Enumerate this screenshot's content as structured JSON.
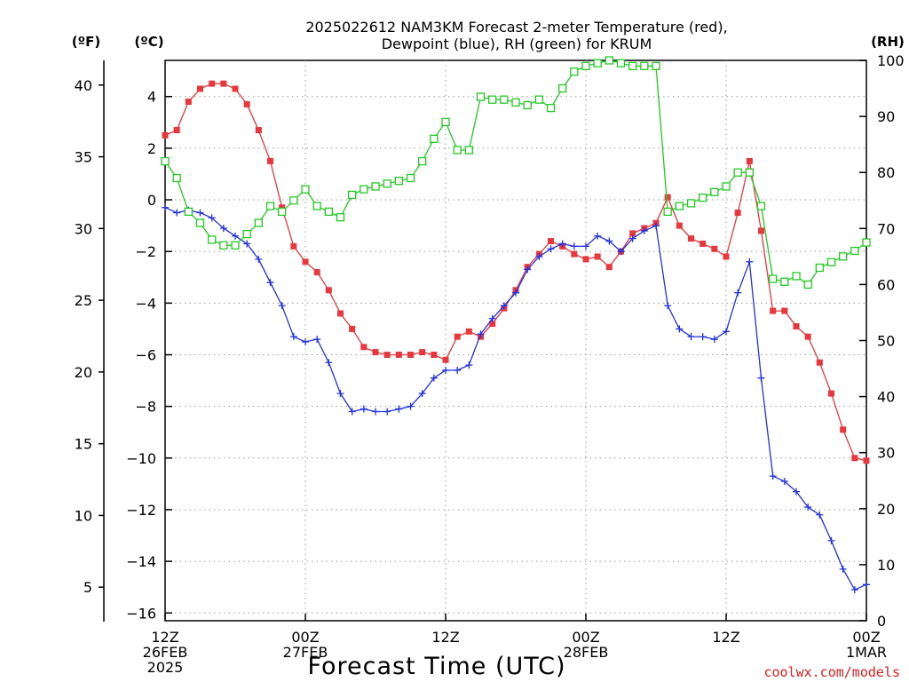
{
  "chart_data": {
    "type": "line",
    "title_line1": "2025022612 NAM3KM Forecast 2-meter Temperature (red),",
    "title_line2": "Dewpoint (blue), RH (green) for KRUM",
    "xlabel": "Forecast Time (UTC)",
    "credit": "coolwx.com/models",
    "unit_f_label": "(ºF)",
    "unit_c_label": "(ºC)",
    "unit_rh_label": "(RH)",
    "x_range_hours": [
      0,
      60
    ],
    "ylim_c": [
      -16.3,
      5.4
    ],
    "ylim_rh": [
      0,
      100
    ],
    "grid": true,
    "x_ticks": [
      {
        "hour": 0,
        "line1": "12Z",
        "line2": "26FEB",
        "line3": "2025"
      },
      {
        "hour": 12,
        "line1": "00Z",
        "line2": "27FEB",
        "line3": ""
      },
      {
        "hour": 24,
        "line1": "12Z",
        "line2": "",
        "line3": ""
      },
      {
        "hour": 36,
        "line1": "00Z",
        "line2": "28FEB",
        "line3": ""
      },
      {
        "hour": 48,
        "line1": "12Z",
        "line2": "",
        "line3": ""
      },
      {
        "hour": 60,
        "line1": "00Z",
        "line2": "1MAR",
        "line3": ""
      }
    ],
    "y_ticks_c": [
      "4",
      "2",
      "0",
      "−2",
      "−4",
      "−6",
      "−8",
      "−10",
      "−12",
      "−14",
      "−16"
    ],
    "y_ticks_c_values": [
      4,
      2,
      0,
      -2,
      -4,
      -6,
      -8,
      -10,
      -12,
      -14,
      -16
    ],
    "y_ticks_f": [
      "40",
      "35",
      "30",
      "25",
      "20",
      "15",
      "10",
      "5"
    ],
    "y_ticks_f_values": [
      40,
      35,
      30,
      25,
      20,
      15,
      10,
      5
    ],
    "y_ticks_rh": [
      "100",
      "90",
      "80",
      "70",
      "60",
      "50",
      "40",
      "30",
      "20",
      "10",
      "0"
    ],
    "y_ticks_rh_values": [
      100,
      90,
      80,
      70,
      60,
      50,
      40,
      30,
      20,
      10,
      0
    ],
    "series": [
      {
        "name": "2-meter Temperature",
        "color": "#e8383e",
        "marker": "filled-square",
        "axis": "c",
        "x": [
          0,
          1,
          2,
          3,
          4,
          5,
          6,
          7,
          8,
          9,
          10,
          11,
          12,
          13,
          14,
          15,
          16,
          17,
          18,
          19,
          20,
          21,
          22,
          23,
          24,
          25,
          26,
          27,
          28,
          29,
          30,
          31,
          32,
          33,
          34,
          35,
          36,
          37,
          38,
          39,
          40,
          41,
          42,
          43,
          44,
          45,
          46,
          47,
          48,
          49,
          50,
          51,
          52,
          53,
          54,
          55,
          56,
          57,
          58,
          59,
          60
        ],
        "values": [
          2.5,
          2.7,
          3.8,
          4.3,
          4.5,
          4.5,
          4.3,
          3.7,
          2.7,
          1.5,
          -0.3,
          -1.8,
          -2.4,
          -2.8,
          -3.5,
          -4.4,
          -5.0,
          -5.7,
          -5.9,
          -6.0,
          -6.0,
          -6.0,
          -5.9,
          -6.0,
          -6.2,
          -5.3,
          -5.1,
          -5.3,
          -4.8,
          -4.2,
          -3.5,
          -2.6,
          -2.1,
          -1.6,
          -1.8,
          -2.1,
          -2.3,
          -2.2,
          -2.6,
          -2.0,
          -1.3,
          -1.1,
          -0.9,
          0.1,
          -1.0,
          -1.5,
          -1.7,
          -1.9,
          -2.2,
          -0.5,
          1.5,
          -1.2,
          -4.3,
          -4.3,
          -4.9,
          -5.3,
          -6.3,
          -7.5,
          -8.9,
          -10.0,
          -10.1
        ]
      },
      {
        "name": "Dewpoint",
        "color": "#2232e0",
        "marker": "plus",
        "axis": "c",
        "x": [
          0,
          1,
          2,
          3,
          4,
          5,
          6,
          7,
          8,
          9,
          10,
          11,
          12,
          13,
          14,
          15,
          16,
          17,
          18,
          19,
          20,
          21,
          22,
          23,
          24,
          25,
          26,
          27,
          28,
          29,
          30,
          31,
          32,
          33,
          34,
          35,
          36,
          37,
          38,
          39,
          40,
          41,
          42,
          43,
          44,
          45,
          46,
          47,
          48,
          49,
          50,
          51,
          52,
          53,
          54,
          55,
          56,
          57,
          58,
          59,
          60
        ],
        "values": [
          -0.3,
          -0.5,
          -0.4,
          -0.5,
          -0.7,
          -1.1,
          -1.4,
          -1.7,
          -2.3,
          -3.2,
          -4.1,
          -5.3,
          -5.5,
          -5.4,
          -6.3,
          -7.5,
          -8.2,
          -8.1,
          -8.2,
          -8.2,
          -8.1,
          -8.0,
          -7.5,
          -6.9,
          -6.6,
          -6.6,
          -6.4,
          -5.2,
          -4.6,
          -4.1,
          -3.6,
          -2.7,
          -2.2,
          -1.9,
          -1.7,
          -1.8,
          -1.8,
          -1.4,
          -1.6,
          -2.0,
          -1.5,
          -1.2,
          -1.0,
          -4.1,
          -5.0,
          -5.3,
          -5.3,
          -5.4,
          -5.1,
          -3.6,
          -2.4,
          -6.9,
          -10.7,
          -10.9,
          -11.3,
          -11.9,
          -12.2,
          -13.2,
          -14.3,
          -15.1,
          -14.9
        ]
      },
      {
        "name": "RH",
        "color": "#22cc22",
        "marker": "open-square",
        "axis": "rh",
        "x": [
          0,
          1,
          2,
          3,
          4,
          5,
          6,
          7,
          8,
          9,
          10,
          11,
          12,
          13,
          14,
          15,
          16,
          17,
          18,
          19,
          20,
          21,
          22,
          23,
          24,
          25,
          26,
          27,
          28,
          29,
          30,
          31,
          32,
          33,
          34,
          35,
          36,
          37,
          38,
          39,
          40,
          41,
          42,
          43,
          44,
          45,
          46,
          47,
          48,
          49,
          50,
          51,
          52,
          53,
          54,
          55,
          56,
          57,
          58,
          59,
          60
        ],
        "values": [
          82,
          79,
          73,
          71,
          68,
          67,
          67,
          69,
          71,
          74,
          73,
          75,
          77,
          74,
          73,
          72,
          76,
          77,
          77.5,
          78,
          78.5,
          79,
          82,
          86,
          89,
          84,
          84,
          93.5,
          93,
          93,
          92.5,
          92,
          93,
          91.5,
          95,
          98,
          99,
          99.5,
          100,
          99.5,
          99,
          99,
          99,
          73,
          74,
          74.5,
          75.5,
          76.5,
          77.5,
          80,
          80,
          74,
          61,
          60.5,
          61.5,
          60,
          63,
          64,
          65,
          66,
          67.5
        ]
      }
    ]
  }
}
